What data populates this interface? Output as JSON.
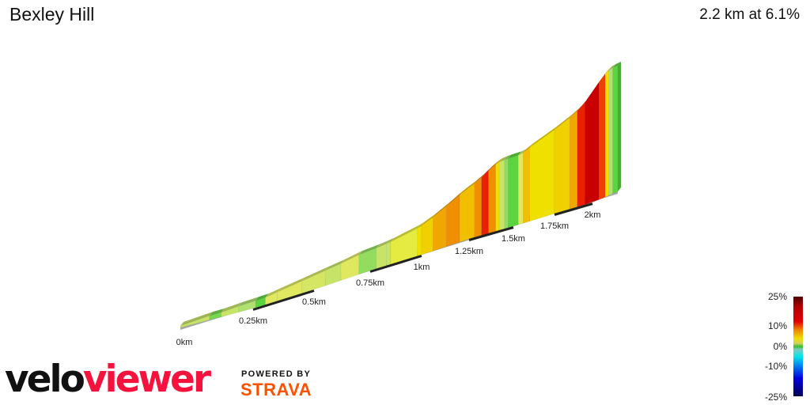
{
  "header": {
    "title": "Bexley Hill",
    "summary": "2.2 km at 6.1%"
  },
  "chart_data": {
    "type": "area",
    "title": "Bexley Hill",
    "subtitle": "2.2 km at 6.1%",
    "x_unit": "km",
    "x_ticks": [
      "0km",
      "0.25km",
      "0.5km",
      "0.75km",
      "1km",
      "1.25km",
      "1.5km",
      "1.75km",
      "2km"
    ],
    "xlim": [
      0,
      2.2
    ],
    "segments": [
      {
        "from": 0,
        "to": 0.1,
        "gradient": 3
      },
      {
        "from": 0.1,
        "to": 0.14,
        "gradient": 1
      },
      {
        "from": 0.14,
        "to": 0.2,
        "gradient": 3
      },
      {
        "from": 0.2,
        "to": 0.26,
        "gradient": 2
      },
      {
        "from": 0.26,
        "to": 0.3,
        "gradient": 0.5
      },
      {
        "from": 0.3,
        "to": 0.35,
        "gradient": 4
      },
      {
        "from": 0.35,
        "to": 0.45,
        "gradient": 4
      },
      {
        "from": 0.45,
        "to": 0.55,
        "gradient": 3.5
      },
      {
        "from": 0.55,
        "to": 0.62,
        "gradient": 3
      },
      {
        "from": 0.62,
        "to": 0.7,
        "gradient": 4
      },
      {
        "from": 0.7,
        "to": 0.78,
        "gradient": 1.5
      },
      {
        "from": 0.78,
        "to": 0.83,
        "gradient": 3
      },
      {
        "from": 0.83,
        "to": 0.85,
        "gradient": 3
      },
      {
        "from": 0.85,
        "to": 0.98,
        "gradient": 5
      },
      {
        "from": 0.98,
        "to": 1.0,
        "gradient": 8
      },
      {
        "from": 1.0,
        "to": 1.06,
        "gradient": 9
      },
      {
        "from": 1.06,
        "to": 1.13,
        "gradient": 11
      },
      {
        "from": 1.13,
        "to": 1.2,
        "gradient": 12
      },
      {
        "from": 1.2,
        "to": 1.28,
        "gradient": 10
      },
      {
        "from": 1.28,
        "to": 1.32,
        "gradient": 12
      },
      {
        "from": 1.32,
        "to": 1.36,
        "gradient": 15
      },
      {
        "from": 1.36,
        "to": 1.4,
        "gradient": 12
      },
      {
        "from": 1.4,
        "to": 1.42,
        "gradient": 8
      },
      {
        "from": 1.42,
        "to": 1.45,
        "gradient": 3
      },
      {
        "from": 1.45,
        "to": 1.47,
        "gradient": 1.5
      },
      {
        "from": 1.47,
        "to": 1.53,
        "gradient": 0.5
      },
      {
        "from": 1.53,
        "to": 1.56,
        "gradient": 4
      },
      {
        "from": 1.56,
        "to": 1.6,
        "gradient": 10
      },
      {
        "from": 1.6,
        "to": 1.75,
        "gradient": 8
      },
      {
        "from": 1.75,
        "to": 1.85,
        "gradient": 9
      },
      {
        "from": 1.85,
        "to": 1.9,
        "gradient": 11
      },
      {
        "from": 1.9,
        "to": 1.95,
        "gradient": 15
      },
      {
        "from": 1.95,
        "to": 2.05,
        "gradient": 18
      },
      {
        "from": 2.05,
        "to": 2.1,
        "gradient": 14
      },
      {
        "from": 2.1,
        "to": 2.13,
        "gradient": 8
      },
      {
        "from": 2.13,
        "to": 2.16,
        "gradient": 2
      },
      {
        "from": 2.16,
        "to": 2.2,
        "gradient": 0.5
      }
    ],
    "color_scale": {
      "labels": [
        "25%",
        "10%",
        "0%",
        "-10%",
        "-25%"
      ],
      "stops": [
        [
          -25,
          "#000050"
        ],
        [
          -10,
          "#00e0e0"
        ],
        [
          -4,
          "#80c8c0"
        ],
        [
          0,
          "#40d030"
        ],
        [
          2,
          "#b0e070"
        ],
        [
          4,
          "#e0e860"
        ],
        [
          7,
          "#f0f000"
        ],
        [
          10,
          "#f0c000"
        ],
        [
          12,
          "#f09000"
        ],
        [
          14,
          "#f04000"
        ],
        [
          16,
          "#e00000"
        ],
        [
          20,
          "#b00000"
        ],
        [
          25,
          "#500000"
        ]
      ]
    }
  },
  "branding": {
    "logo_left": "velo",
    "logo_right": "viewer",
    "powered_by": "POWERED BY",
    "strava": "STRAVA"
  }
}
